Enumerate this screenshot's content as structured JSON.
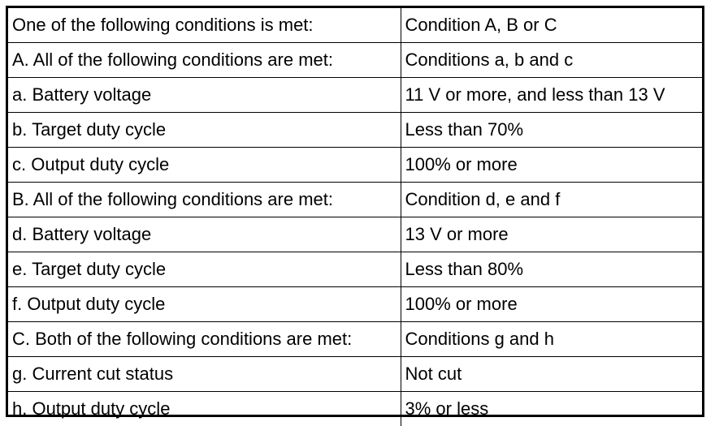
{
  "rows": [
    {
      "condition": "One of the following conditions is met:",
      "value": "Condition A, B or C"
    },
    {
      "condition": "A. All of the following conditions are met:",
      "value": "Conditions a, b and c"
    },
    {
      "condition": "a. Battery voltage",
      "value": "11 V or more, and less than 13 V"
    },
    {
      "condition": "b. Target duty cycle",
      "value": "Less than 70%"
    },
    {
      "condition": "c. Output duty cycle",
      "value": "100% or more"
    },
    {
      "condition": "B. All of the following conditions are met:",
      "value": "Condition d, e and f"
    },
    {
      "condition": "d. Battery voltage",
      "value": "13 V or more"
    },
    {
      "condition": "e. Target duty cycle",
      "value": "Less than 80%"
    },
    {
      "condition": "f. Output duty cycle",
      "value": "100% or more"
    },
    {
      "condition": "C. Both of the following conditions are met:",
      "value": "Conditions g and h"
    },
    {
      "condition": "g. Current cut status",
      "value": "Not cut"
    },
    {
      "condition": "h. Output duty cycle",
      "value": "3% or less"
    }
  ]
}
